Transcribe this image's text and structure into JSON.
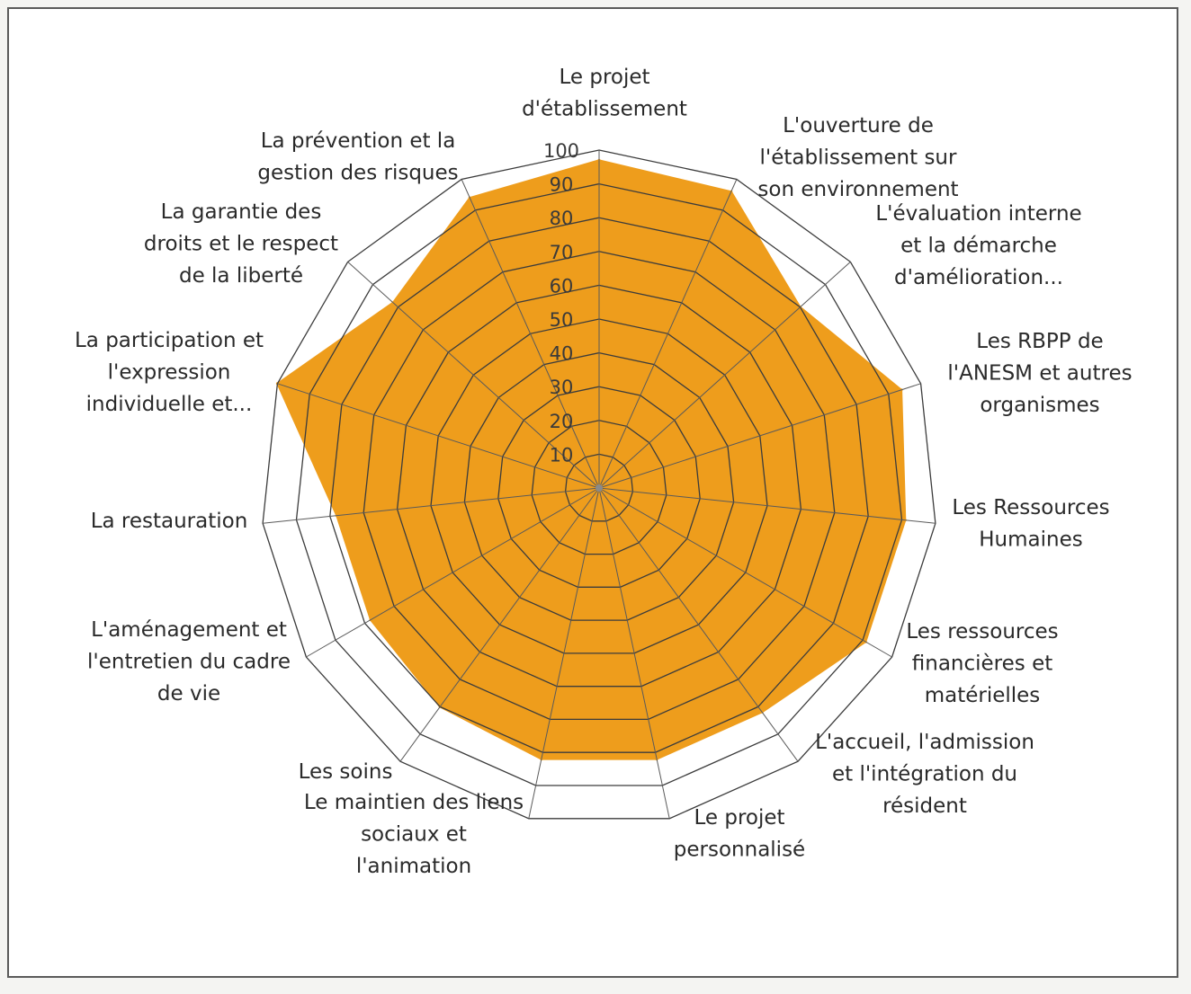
{
  "chart_data": {
    "type": "radar",
    "categories": [
      "Le projet d'établissement",
      "L'ouverture de l'établissement sur son environnement",
      "L'évaluation interne et la démarche d'amélioration...",
      "Les RBPP de l'ANESM et autres organismes",
      "Les Ressources Humaines",
      "Les ressources financières et matérielles",
      "L'accueil, l'admission et l'intégration du résident",
      "Le projet personnalisé",
      "Le maintien des liens sociaux et l'animation",
      "Les soins",
      "L'aménagement et l'entretien du cadre de vie",
      "La restauration",
      "La participation et l'expression individuelle et...",
      "La garantie des droits et le respect de la liberté",
      "La prévention et la gestion des risques"
    ],
    "category_lines": [
      [
        "Le projet",
        "d'établissement"
      ],
      [
        "L'ouverture de",
        "l'établissement sur",
        "son environnement"
      ],
      [
        "L'évaluation interne",
        "et la démarche",
        "d'amélioration..."
      ],
      [
        "Les RBPP de",
        "l'ANESM et autres",
        "organismes"
      ],
      [
        "Les Ressources",
        "Humaines"
      ],
      [
        "Les ressources",
        "financières et",
        "matérielles"
      ],
      [
        "L'accueil, l'admission",
        "et l'intégration du",
        "résident"
      ],
      [
        "Le projet",
        "personnalisé"
      ],
      [
        "Le maintien des liens",
        "sociaux et",
        "l'animation"
      ],
      [
        "Les soins"
      ],
      [
        "L'aménagement et",
        "l'entretien du cadre",
        "de vie"
      ],
      [
        "La restauration"
      ],
      [
        "La participation et",
        "l'expression",
        "individuelle et..."
      ],
      [
        "La garantie des",
        "droits et le respect",
        "de la liberté"
      ],
      [
        "La prévention et la",
        "gestion des risques"
      ]
    ],
    "series": [
      {
        "values": [
          97,
          96,
          80,
          94,
          91,
          91,
          82,
          82,
          82,
          80,
          78,
          78,
          100,
          82,
          94
        ]
      }
    ],
    "ylim": [
      0,
      100
    ],
    "ticks": [
      "10",
      "20",
      "30",
      "40",
      "50",
      "60",
      "70",
      "80",
      "90",
      "100"
    ],
    "tick_values": [
      10,
      20,
      30,
      40,
      50,
      60,
      70,
      80,
      90,
      100
    ],
    "grid": true,
    "colors": {
      "fill": "#ee9d1c",
      "grid": "#3c3c3c",
      "spoke": "#5a5a5a"
    }
  }
}
